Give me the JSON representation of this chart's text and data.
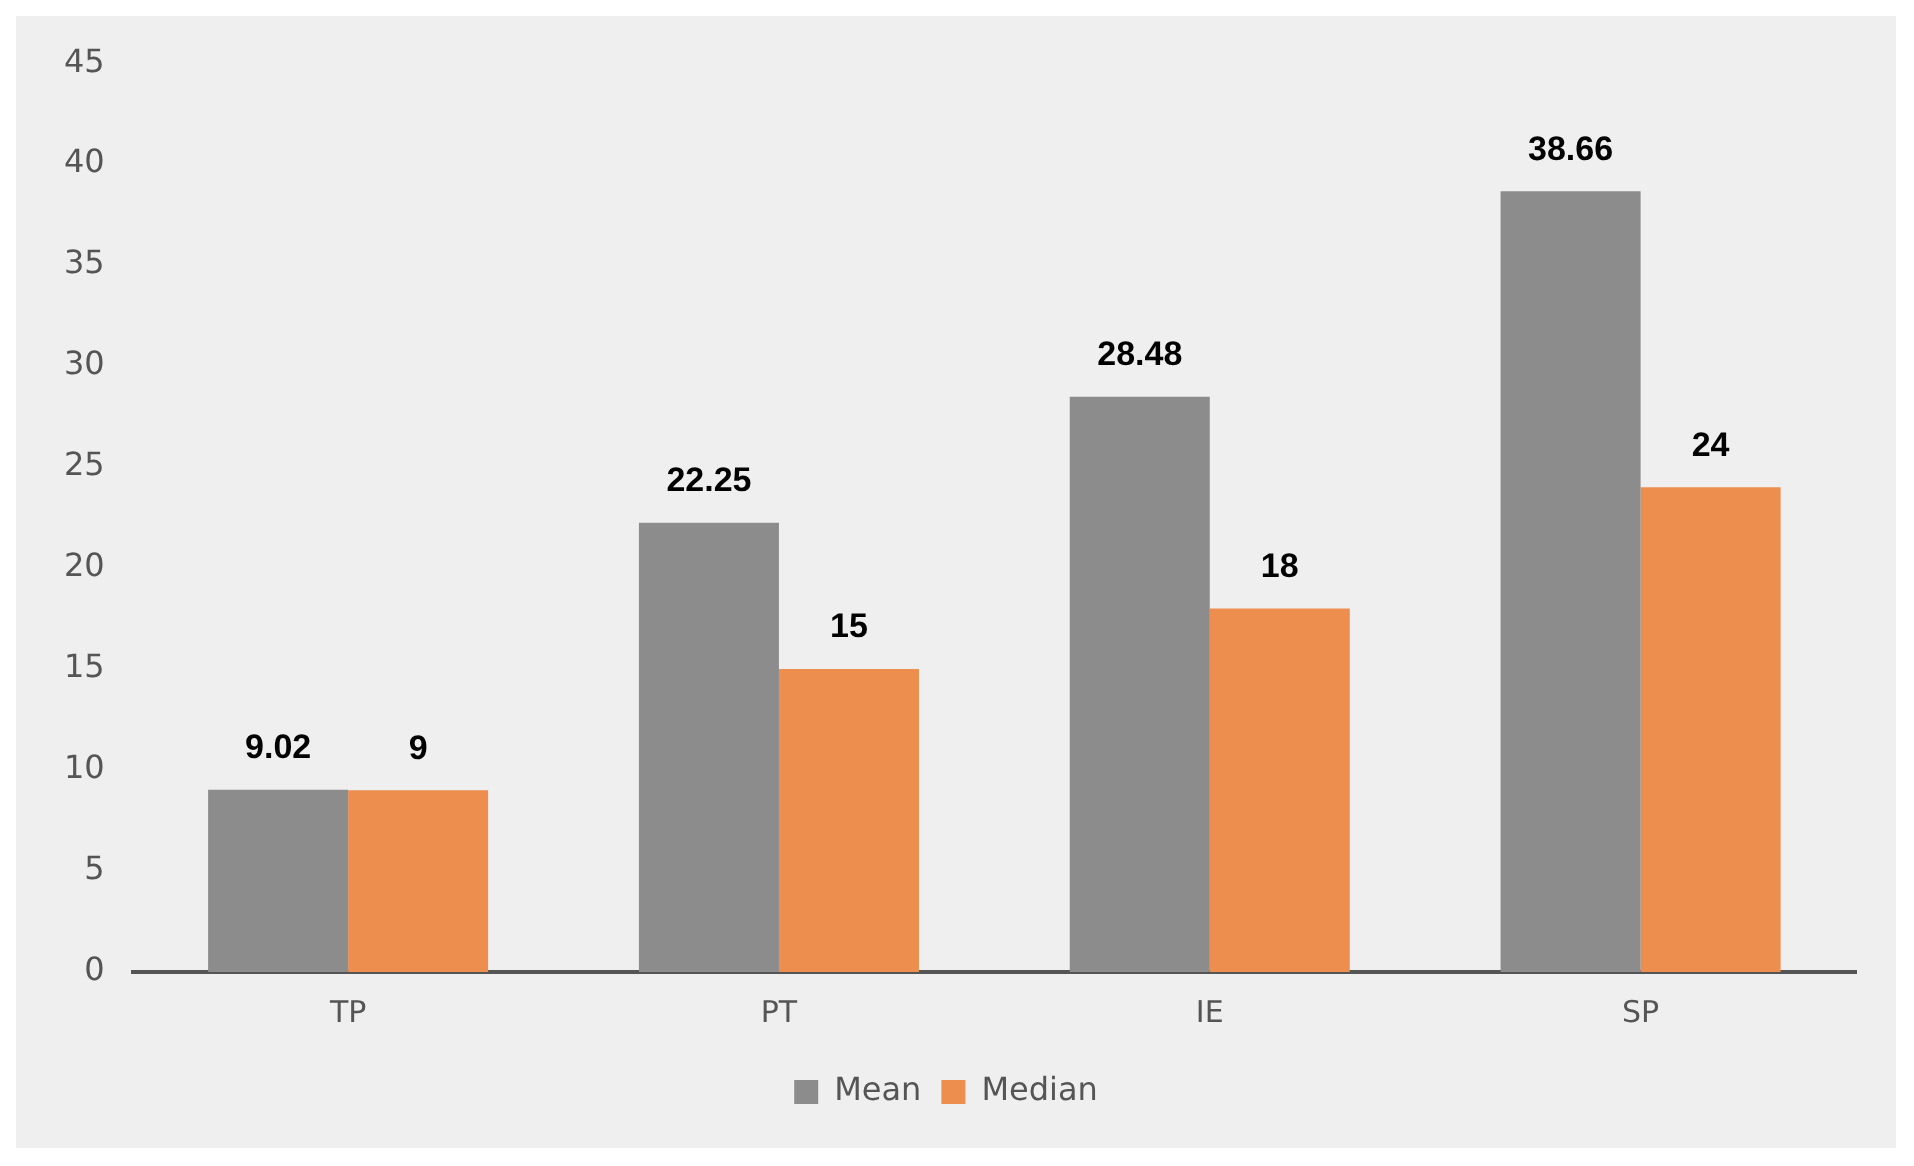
{
  "chart_data": {
    "type": "bar",
    "categories": [
      "TP",
      "PT",
      "IE",
      "SP"
    ],
    "series": [
      {
        "name": "Mean",
        "color": "#8c8c8c",
        "values": [
          9.02,
          22.25,
          28.48,
          38.66
        ]
      },
      {
        "name": "Median",
        "color": "#ed8e4f",
        "values": [
          9,
          15,
          18,
          24
        ]
      }
    ],
    "ylim": [
      0,
      45
    ],
    "yticks": [
      0,
      5,
      10,
      15,
      20,
      25,
      30,
      35,
      40,
      45
    ],
    "grid": false,
    "legend": "bottom",
    "data_labels": true
  }
}
